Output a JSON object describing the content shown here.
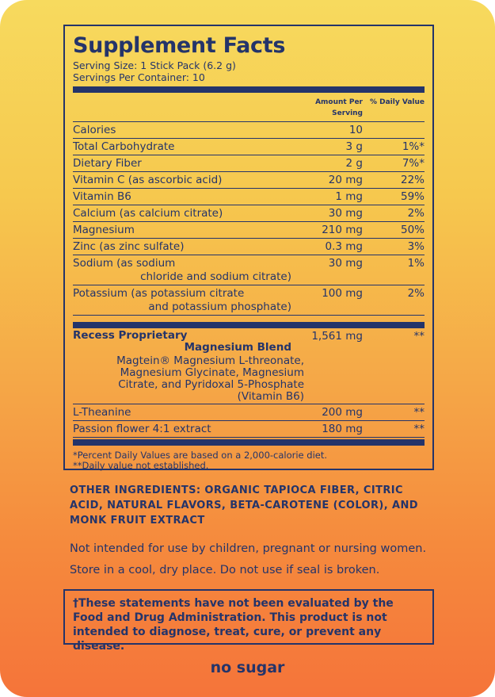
{
  "header": {
    "title": "Supplement Facts",
    "serving_size": "Serving Size: 1 Stick Pack (6.2 g)",
    "servings": "Servings Per Container: 10"
  },
  "columns": {
    "amount": "Amount Per Serving",
    "dv": "% Daily Value"
  },
  "nutrients": [
    {
      "lines": [
        "Calories"
      ],
      "amount": "10"
    },
    {
      "lines": [
        "Total Carbohydrate"
      ],
      "amount": "3 g",
      "dv": "1%*"
    },
    {
      "lines": [
        "Dietary Fiber"
      ],
      "amount": "2 g",
      "dv": "7%*"
    },
    {
      "lines": [
        "Vitamin C (as ascorbic acid)"
      ],
      "amount": "20 mg",
      "dv": "22%"
    },
    {
      "lines": [
        "Vitamin B6"
      ],
      "amount": "1 mg",
      "dv": "59%"
    },
    {
      "lines": [
        "Calcium (as calcium citrate)"
      ],
      "amount": "30 mg",
      "dv": "2%"
    },
    {
      "lines": [
        "Magnesium"
      ],
      "amount": "210 mg",
      "dv": "50%"
    },
    {
      "lines": [
        "Zinc (as zinc sulfate)"
      ],
      "amount": "0.3 mg",
      "dv": "3%"
    },
    {
      "lines": [
        "Sodium (as sodium",
        "chloride and sodium citrate)"
      ],
      "amount": "30 mg",
      "dv": "1%"
    },
    {
      "lines": [
        "Potassium (as potassium citrate",
        "and potassium phosphate)"
      ],
      "amount": "100 mg",
      "dv": "2%"
    }
  ],
  "blend": {
    "lines": [
      "Recess Proprietary",
      "Magnesium Blend"
    ],
    "amount": "1,561 mg",
    "dv": "**",
    "ingredients": [
      "Magtein® Magnesium L-threonate,",
      "Magnesium Glycinate, Magnesium",
      "Citrate, and Pyridoxal 5-Phosphate",
      "(Vitamin B6)"
    ]
  },
  "others": [
    {
      "lines": [
        "L-Theanine"
      ],
      "amount": "200 mg",
      "dv": "**"
    },
    {
      "lines": [
        "Passion flower 4:1 extract"
      ],
      "amount": "180 mg",
      "dv": "**"
    }
  ],
  "footnotes": [
    "*Percent Daily Values are based on a 2,000-calorie diet.",
    "**Daily value not established."
  ],
  "other_ingredients": "OTHER INGREDIENTS: ORGANIC TAPIOCA FIBER, CITRIC ACID, NATURAL FLAVORS, BETA-CAROTENE (COLOR), AND MONK FRUIT EXTRACT",
  "warnings": [
    "Not intended for use by children, pregnant or nursing women.",
    "Store in a cool, dry place. Do not use if seal is broken."
  ],
  "disclaimer": "†These statements have not been evaluated by the Food and Drug Administration. This product is not intended to diagnose, treat, cure, or prevent any disease.",
  "tagline": "no sugar"
}
